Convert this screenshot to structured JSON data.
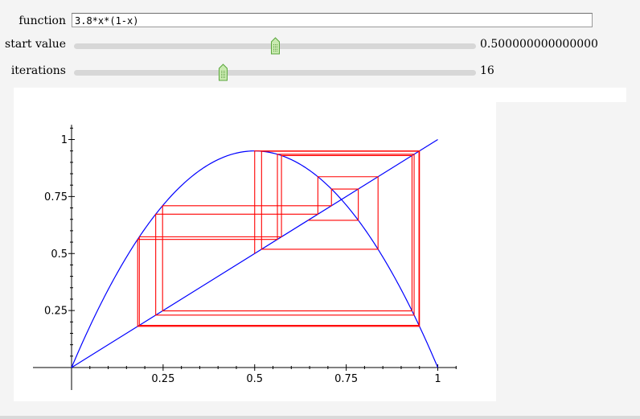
{
  "controls": {
    "function": {
      "label": "function",
      "value": "3.8*x*(1-x)"
    },
    "start_value": {
      "label": "start value",
      "value_text": "0.500000000000000",
      "fraction": 0.5
    },
    "iterations": {
      "label": "iterations",
      "value_text": "16",
      "fraction": 0.37
    }
  },
  "colors": {
    "curve": "#0000ff",
    "cobweb": "#ff0000",
    "axes": "#000000"
  },
  "icons": {
    "slider_handle": "slider-grip-icon"
  },
  "chart_data": {
    "type": "line",
    "title": "",
    "xlabel": "",
    "ylabel": "",
    "xlim": [
      0,
      1.1
    ],
    "ylim": [
      0,
      1.1
    ],
    "grid": false,
    "x_ticks": [
      0.25,
      0.5,
      0.75,
      1
    ],
    "x_tick_labels": [
      "0.25",
      "0.5",
      "0.75",
      "1"
    ],
    "y_ticks": [
      0.25,
      0.5,
      0.75,
      1
    ],
    "y_tick_labels": [
      "0.25",
      "0.5",
      "0.75",
      "1"
    ],
    "function": {
      "r": 3.8
    },
    "start_value": 0.5,
    "iterations": 16,
    "series": [
      {
        "kind": "curve",
        "x_range": [
          0,
          1
        ]
      },
      {
        "kind": "identity",
        "x_range": [
          0,
          1
        ]
      },
      {
        "kind": "cobweb"
      }
    ]
  }
}
